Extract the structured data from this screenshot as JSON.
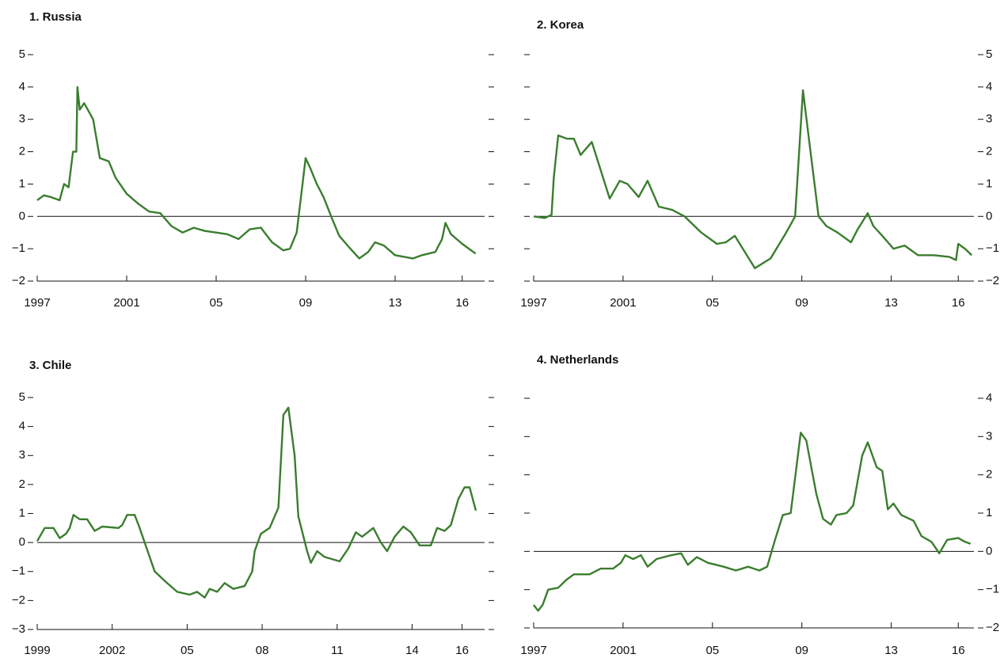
{
  "chart_data": [
    {
      "type": "line",
      "title": "1. Russia",
      "color": "#3a7d2e",
      "ytick_side": "left",
      "zero_line": true,
      "xlim": [
        1997,
        2017
      ],
      "ylim": [
        -2,
        5
      ],
      "xticks": [
        {
          "value": 1997,
          "label": "1997"
        },
        {
          "value": 2001,
          "label": "2001"
        },
        {
          "value": 2005,
          "label": "05"
        },
        {
          "value": 2009,
          "label": "09"
        },
        {
          "value": 2013,
          "label": "13"
        },
        {
          "value": 2016,
          "label": "16"
        }
      ],
      "yticks": [
        {
          "value": -2,
          "label": "−2"
        },
        {
          "value": -1,
          "label": "−1"
        },
        0,
        1,
        2,
        3,
        4,
        5
      ],
      "x": [
        1997.0,
        1997.3,
        1997.6,
        1998.0,
        1998.2,
        1998.4,
        1998.6,
        1998.75,
        1998.8,
        1998.9,
        1999.1,
        1999.5,
        1999.8,
        2000.2,
        2000.5,
        2001.0,
        2001.5,
        2002.0,
        2002.5,
        2003.0,
        2003.5,
        2004.0,
        2004.5,
        2005.0,
        2005.5,
        2006.0,
        2006.5,
        2007.0,
        2007.5,
        2008.0,
        2008.3,
        2008.6,
        2009.0,
        2009.2,
        2009.5,
        2009.8,
        2010.2,
        2010.5,
        2011.0,
        2011.4,
        2011.8,
        2012.1,
        2012.5,
        2013.0,
        2013.8,
        2014.2,
        2014.8,
        2015.1,
        2015.25,
        2015.5,
        2016.0,
        2016.3,
        2016.6
      ],
      "values": [
        0.5,
        0.65,
        0.6,
        0.5,
        1.0,
        0.9,
        2.0,
        2.0,
        4.0,
        3.3,
        3.5,
        3.0,
        1.8,
        1.7,
        1.2,
        0.7,
        0.4,
        0.15,
        0.1,
        -0.3,
        -0.5,
        -0.35,
        -0.45,
        -0.5,
        -0.55,
        -0.7,
        -0.4,
        -0.35,
        -0.8,
        -1.05,
        -1.0,
        -0.5,
        1.8,
        1.5,
        1.0,
        0.6,
        -0.1,
        -0.6,
        -1.0,
        -1.3,
        -1.1,
        -0.8,
        -0.9,
        -1.2,
        -1.3,
        -1.2,
        -1.1,
        -0.7,
        -0.2,
        -0.55,
        -0.85,
        -1.0,
        -1.15
      ]
    },
    {
      "type": "line",
      "title": "2. Korea",
      "color": "#3a7d2e",
      "ytick_side": "right",
      "zero_line": true,
      "xlim": [
        1997,
        2016.7
      ],
      "ylim": [
        -2,
        5
      ],
      "xticks": [
        {
          "value": 1997,
          "label": "1997"
        },
        {
          "value": 2001,
          "label": "2001"
        },
        {
          "value": 2005,
          "label": "05"
        },
        {
          "value": 2009,
          "label": "09"
        },
        {
          "value": 2013,
          "label": "13"
        },
        {
          "value": 2016,
          "label": "16"
        }
      ],
      "yticks": [
        {
          "value": -2,
          "label": "−2"
        },
        {
          "value": -1,
          "label": "−1"
        },
        0,
        1,
        2,
        3,
        4,
        5
      ],
      "x": [
        1997.0,
        1997.5,
        1997.8,
        1997.9,
        1998.1,
        1998.5,
        1998.8,
        1999.1,
        1999.6,
        2000.4,
        2000.85,
        2001.2,
        2001.7,
        2002.1,
        2002.6,
        2003.2,
        2003.75,
        2004.5,
        2005.2,
        2005.6,
        2006.0,
        2006.9,
        2007.6,
        2008.3,
        2008.7,
        2009.05,
        2009.3,
        2009.75,
        2010.1,
        2010.6,
        2011.2,
        2011.5,
        2011.95,
        2012.2,
        2012.6,
        2013.1,
        2013.6,
        2014.2,
        2014.9,
        2015.6,
        2015.9,
        2016.0,
        2016.3,
        2016.6
      ],
      "values": [
        0,
        -0.05,
        0.05,
        1.2,
        2.5,
        2.4,
        2.4,
        1.9,
        2.3,
        0.55,
        1.1,
        1.0,
        0.6,
        1.1,
        0.3,
        0.2,
        0,
        -0.5,
        -0.85,
        -0.8,
        -0.6,
        -1.6,
        -1.3,
        -0.5,
        0,
        3.9,
        2.5,
        0,
        -0.3,
        -0.5,
        -0.8,
        -0.4,
        0.1,
        -0.3,
        -0.6,
        -1.0,
        -0.9,
        -1.2,
        -1.2,
        -1.25,
        -1.35,
        -0.85,
        -1.0,
        -1.2
      ]
    },
    {
      "type": "line",
      "title": "3. Chile",
      "color": "#3a7d2e",
      "ytick_side": "left",
      "zero_line": true,
      "xlim": [
        1999,
        2016.9
      ],
      "ylim": [
        -3,
        5
      ],
      "xticks": [
        {
          "value": 1999,
          "label": "1999"
        },
        {
          "value": 2002,
          "label": "2002"
        },
        {
          "value": 2005,
          "label": "05"
        },
        {
          "value": 2008,
          "label": "08"
        },
        {
          "value": 2011,
          "label": "11"
        },
        {
          "value": 2014,
          "label": "14"
        },
        {
          "value": 2016,
          "label": "16"
        }
      ],
      "yticks": [
        {
          "value": -3,
          "label": "−3"
        },
        {
          "value": -2,
          "label": "−2"
        },
        {
          "value": -1,
          "label": "−1"
        },
        0,
        1,
        2,
        3,
        4,
        5
      ],
      "x": [
        1999.0,
        1999.3,
        1999.65,
        1999.9,
        2000.15,
        2000.3,
        2000.45,
        2000.7,
        2001.0,
        2001.3,
        2001.6,
        2002.25,
        2002.4,
        2002.6,
        2002.9,
        2003.1,
        2003.3,
        2003.7,
        2004.2,
        2004.6,
        2005.1,
        2005.4,
        2005.7,
        2005.9,
        2006.2,
        2006.5,
        2006.85,
        2007.3,
        2007.6,
        2007.7,
        2007.95,
        2008.3,
        2008.65,
        2008.85,
        2009.05,
        2009.3,
        2009.45,
        2009.8,
        2009.95,
        2010.2,
        2010.5,
        2011.1,
        2011.45,
        2011.75,
        2012.0,
        2012.45,
        2012.75,
        2013.0,
        2013.3,
        2013.65,
        2013.95,
        2014.3,
        2014.75,
        2015.0,
        2015.3,
        2015.55,
        2015.85,
        2016.1,
        2016.3,
        2016.55
      ],
      "values": [
        0.05,
        0.5,
        0.5,
        0.15,
        0.3,
        0.5,
        0.95,
        0.8,
        0.8,
        0.4,
        0.55,
        0.5,
        0.6,
        0.95,
        0.95,
        0.5,
        0,
        -1.0,
        -1.4,
        -1.7,
        -1.8,
        -1.7,
        -1.9,
        -1.6,
        -1.7,
        -1.4,
        -1.6,
        -1.5,
        -1.0,
        -0.3,
        0.3,
        0.5,
        1.2,
        4.4,
        4.65,
        3.0,
        0.9,
        -0.3,
        -0.7,
        -0.3,
        -0.5,
        -0.65,
        -0.2,
        0.35,
        0.2,
        0.5,
        0,
        -0.3,
        0.2,
        0.55,
        0.35,
        -0.1,
        -0.1,
        0.5,
        0.4,
        0.6,
        1.5,
        1.9,
        1.9,
        1.1
      ]
    },
    {
      "type": "line",
      "title": "4. Netherlands",
      "color": "#3a7d2e",
      "ytick_side": "right",
      "zero_line": true,
      "xlim": [
        1997,
        2016.7
      ],
      "ylim": [
        -2,
        4
      ],
      "xticks": [
        {
          "value": 1997,
          "label": "1997"
        },
        {
          "value": 2001,
          "label": "2001"
        },
        {
          "value": 2005,
          "label": "05"
        },
        {
          "value": 2009,
          "label": "09"
        },
        {
          "value": 2013,
          "label": "13"
        },
        {
          "value": 2016,
          "label": "16"
        }
      ],
      "yticks": [
        {
          "value": -2,
          "label": "−2"
        },
        {
          "value": -1,
          "label": "−1"
        },
        0,
        1,
        2,
        3,
        4
      ],
      "x": [
        1997.0,
        1997.2,
        1997.4,
        1997.65,
        1998.1,
        1998.45,
        1998.8,
        1999.5,
        2000.0,
        2000.55,
        2000.9,
        2001.1,
        2001.45,
        2001.8,
        2002.1,
        2002.5,
        2003.15,
        2003.6,
        2003.9,
        2004.3,
        2004.8,
        2005.5,
        2006.05,
        2006.6,
        2007.1,
        2007.45,
        2007.8,
        2008.15,
        2008.5,
        2008.95,
        2009.2,
        2009.65,
        2009.95,
        2010.3,
        2010.55,
        2011.0,
        2011.3,
        2011.7,
        2011.95,
        2012.35,
        2012.6,
        2012.85,
        2013.1,
        2013.45,
        2014.0,
        2014.35,
        2014.8,
        2015.15,
        2015.5,
        2016.0,
        2016.3,
        2016.55
      ],
      "values": [
        -1.4,
        -1.55,
        -1.4,
        -1.0,
        -0.95,
        -0.75,
        -0.6,
        -0.6,
        -0.45,
        -0.45,
        -0.3,
        -0.1,
        -0.2,
        -0.1,
        -0.4,
        -0.2,
        -0.1,
        -0.05,
        -0.35,
        -0.15,
        -0.3,
        -0.4,
        -0.5,
        -0.4,
        -0.5,
        -0.4,
        0.3,
        0.95,
        1.0,
        3.1,
        2.9,
        1.5,
        0.85,
        0.7,
        0.95,
        1.0,
        1.2,
        2.5,
        2.85,
        2.2,
        2.1,
        1.1,
        1.25,
        0.95,
        0.8,
        0.4,
        0.25,
        -0.05,
        0.3,
        0.35,
        0.25,
        0.2
      ]
    }
  ]
}
